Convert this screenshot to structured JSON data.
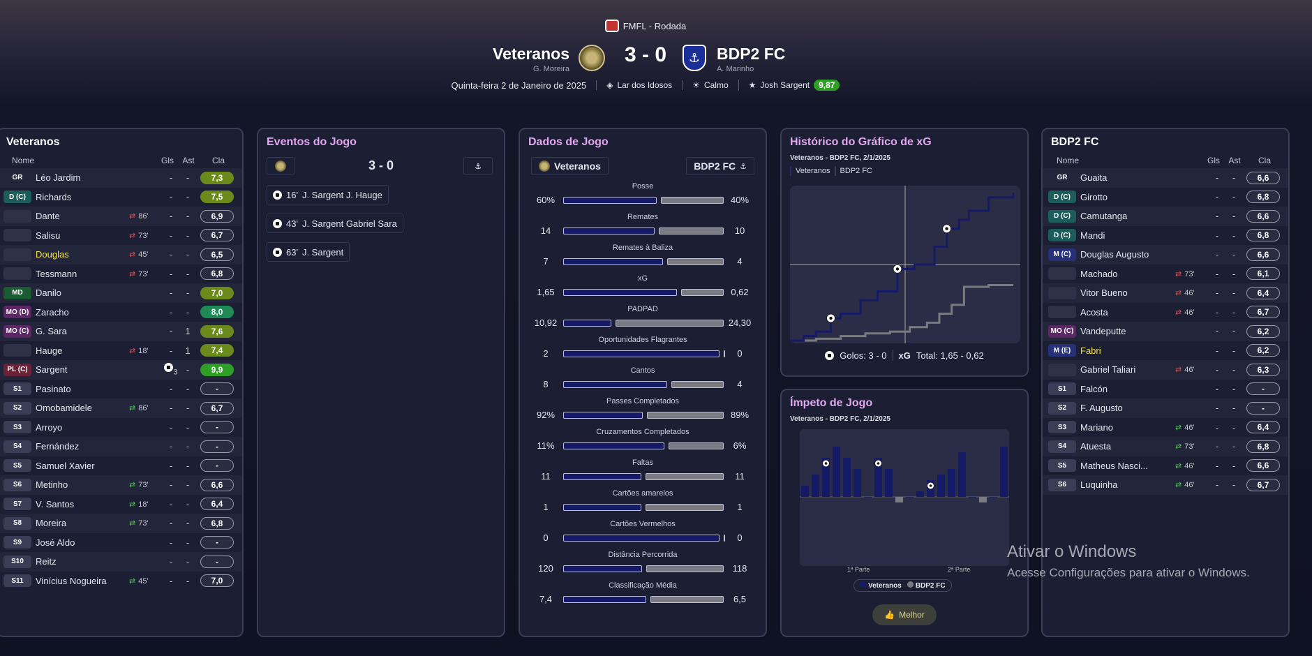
{
  "header": {
    "competition": "FMFL - Rodada",
    "home": {
      "name": "Veteranos",
      "manager": "G. Moreira"
    },
    "away": {
      "name": "BDP2 FC",
      "manager": "A. Marinho"
    },
    "score": "3 - 0",
    "date": "Quinta-feira 2 de Janeiro de 2025",
    "stadium": "Lar dos Idosos",
    "weather": "Calmo",
    "mvp_name": "Josh Sargent",
    "mvp_rating": "9,87"
  },
  "cols": {
    "name": "Nome",
    "gls": "Gls",
    "ast": "Ast",
    "cla": "Cla"
  },
  "home_panel": {
    "title": "Veteranos",
    "players": [
      {
        "pos": "GR",
        "name": "Léo Jardim",
        "sub": "",
        "gls": "-",
        "ast": "-",
        "rating": "7,3",
        "style": "olive"
      },
      {
        "pos": "D (C)",
        "name": "Richards",
        "sub": "",
        "gls": "-",
        "ast": "-",
        "rating": "7,5",
        "style": "olive"
      },
      {
        "pos": "",
        "name": "Dante",
        "sub": "86'",
        "gls": "-",
        "ast": "-",
        "rating": "6,9",
        "style": "none"
      },
      {
        "pos": "",
        "name": "Salisu",
        "sub": "73'",
        "gls": "-",
        "ast": "-",
        "rating": "6,7",
        "style": "none"
      },
      {
        "pos": "",
        "name": "Douglas",
        "sub": "45'",
        "gls": "-",
        "ast": "-",
        "rating": "6,5",
        "style": "none"
      },
      {
        "pos": "",
        "name": "Tessmann",
        "sub": "73'",
        "gls": "-",
        "ast": "-",
        "rating": "6,8",
        "style": "none"
      },
      {
        "pos": "MD",
        "name": "Danilo",
        "sub": "",
        "gls": "-",
        "ast": "-",
        "rating": "7,0",
        "style": "olive"
      },
      {
        "pos": "MO (D)",
        "name": "Zaracho",
        "sub": "",
        "gls": "-",
        "ast": "-",
        "rating": "8,0",
        "style": "teal"
      },
      {
        "pos": "MO (C)",
        "name": "G. Sara",
        "sub": "",
        "gls": "-",
        "ast": "1",
        "rating": "7,6",
        "style": "olive"
      },
      {
        "pos": "",
        "name": "Hauge",
        "sub": "18'",
        "gls": "-",
        "ast": "1",
        "rating": "7,4",
        "style": "olive"
      },
      {
        "pos": "PL (C)",
        "name": "Sargent",
        "sub": "",
        "gls": "3",
        "ast": "-",
        "rating": "9,9",
        "style": "green"
      },
      {
        "pos": "S1",
        "name": "Pasinato",
        "sub": "",
        "gls": "-",
        "ast": "-",
        "rating": "-",
        "style": "none"
      },
      {
        "pos": "S2",
        "name": "Omobamidele",
        "sub": "86'",
        "gls": "-",
        "ast": "-",
        "rating": "6,7",
        "style": "none"
      },
      {
        "pos": "S3",
        "name": "Arroyo",
        "sub": "",
        "gls": "-",
        "ast": "-",
        "rating": "-",
        "style": "none"
      },
      {
        "pos": "S4",
        "name": "Fernández",
        "sub": "",
        "gls": "-",
        "ast": "-",
        "rating": "-",
        "style": "none"
      },
      {
        "pos": "S5",
        "name": "Samuel Xavier",
        "sub": "",
        "gls": "-",
        "ast": "-",
        "rating": "-",
        "style": "none"
      },
      {
        "pos": "S6",
        "name": "Metinho",
        "sub": "73'",
        "gls": "-",
        "ast": "-",
        "rating": "6,6",
        "style": "none"
      },
      {
        "pos": "S7",
        "name": "V. Santos",
        "sub": "18'",
        "gls": "-",
        "ast": "-",
        "rating": "6,4",
        "style": "none"
      },
      {
        "pos": "S8",
        "name": "Moreira",
        "sub": "73'",
        "gls": "-",
        "ast": "-",
        "rating": "6,8",
        "style": "none"
      },
      {
        "pos": "S9",
        "name": "José Aldo",
        "sub": "",
        "gls": "-",
        "ast": "-",
        "rating": "-",
        "style": "none"
      },
      {
        "pos": "S10",
        "name": "Reitz",
        "sub": "",
        "gls": "-",
        "ast": "-",
        "rating": "-",
        "style": "none"
      },
      {
        "pos": "S11",
        "name": "Vinícius Nogueira",
        "sub": "45'",
        "gls": "-",
        "ast": "-",
        "rating": "7,0",
        "style": "none"
      }
    ]
  },
  "away_panel": {
    "title": "BDP2 FC",
    "players": [
      {
        "pos": "GR",
        "name": "Guaita",
        "sub": "",
        "gls": "-",
        "ast": "-",
        "rating": "6,6",
        "style": "none"
      },
      {
        "pos": "D (C)",
        "name": "Girotto",
        "sub": "",
        "gls": "-",
        "ast": "-",
        "rating": "6,8",
        "style": "none"
      },
      {
        "pos": "D (C)",
        "name": "Camutanga",
        "sub": "",
        "gls": "-",
        "ast": "-",
        "rating": "6,6",
        "style": "none"
      },
      {
        "pos": "D (C)",
        "name": "Mandi",
        "sub": "",
        "gls": "-",
        "ast": "-",
        "rating": "6,8",
        "style": "none"
      },
      {
        "pos": "M (C)",
        "name": "Douglas Augusto",
        "sub": "",
        "gls": "-",
        "ast": "-",
        "rating": "6,6",
        "style": "none"
      },
      {
        "pos": "",
        "name": "Machado",
        "sub": "73'",
        "gls": "-",
        "ast": "-",
        "rating": "6,1",
        "style": "none"
      },
      {
        "pos": "",
        "name": "Vitor Bueno",
        "sub": "46'",
        "gls": "-",
        "ast": "-",
        "rating": "6,4",
        "style": "none"
      },
      {
        "pos": "",
        "name": "Acosta",
        "sub": "46'",
        "gls": "-",
        "ast": "-",
        "rating": "6,7",
        "style": "none"
      },
      {
        "pos": "MO (C)",
        "name": "Vandeputte",
        "sub": "",
        "gls": "-",
        "ast": "-",
        "rating": "6,2",
        "style": "none"
      },
      {
        "pos": "M (E)",
        "name": "Fabri",
        "sub": "",
        "gls": "-",
        "ast": "-",
        "rating": "6,2",
        "style": "none"
      },
      {
        "pos": "",
        "name": "Gabriel Taliari",
        "sub": "46'",
        "gls": "-",
        "ast": "-",
        "rating": "6,3",
        "style": "none"
      },
      {
        "pos": "S1",
        "name": "Falcón",
        "sub": "",
        "gls": "-",
        "ast": "-",
        "rating": "-",
        "style": "none"
      },
      {
        "pos": "S2",
        "name": "F. Augusto",
        "sub": "",
        "gls": "-",
        "ast": "-",
        "rating": "-",
        "style": "none"
      },
      {
        "pos": "S3",
        "name": "Mariano",
        "sub": "46'",
        "gls": "-",
        "ast": "-",
        "rating": "6,4",
        "style": "none"
      },
      {
        "pos": "S4",
        "name": "Atuesta",
        "sub": "73'",
        "gls": "-",
        "ast": "-",
        "rating": "6,8",
        "style": "none"
      },
      {
        "pos": "S5",
        "name": "Matheus Nasci...",
        "sub": "46'",
        "gls": "-",
        "ast": "-",
        "rating": "6,6",
        "style": "none"
      },
      {
        "pos": "S6",
        "name": "Luquinha",
        "sub": "46'",
        "gls": "-",
        "ast": "-",
        "rating": "6,7",
        "style": "none"
      }
    ]
  },
  "events": {
    "title": "Eventos do Jogo",
    "score": "3 - 0",
    "items": [
      {
        "minute": "16'",
        "text": "J. Sargent  J. Hauge"
      },
      {
        "minute": "43'",
        "text": "J. Sargent  Gabriel Sara"
      },
      {
        "minute": "63'",
        "text": "J. Sargent"
      }
    ]
  },
  "stats": {
    "title": "Dados de Jogo",
    "home": "Veteranos",
    "away": "BDP2 FC",
    "rows": [
      {
        "label": "Posse",
        "l": "60%",
        "r": "40%",
        "lv": 60,
        "rv": 40
      },
      {
        "label": "Remates",
        "l": "14",
        "r": "10",
        "lv": 14,
        "rv": 10
      },
      {
        "label": "Remates à Baliza",
        "l": "7",
        "r": "4",
        "lv": 7,
        "rv": 4
      },
      {
        "label": "xG",
        "l": "1,65",
        "r": "0,62",
        "lv": 1.65,
        "rv": 0.62
      },
      {
        "label": "PADPAD",
        "l": "10,92",
        "r": "24,30",
        "lv": 10.92,
        "rv": 24.3
      },
      {
        "label": "Oportunidades Flagrantes",
        "l": "2",
        "r": "0",
        "lv": 2,
        "rv": 0
      },
      {
        "label": "Cantos",
        "l": "8",
        "r": "4",
        "lv": 8,
        "rv": 4
      },
      {
        "label": "Passes Completados",
        "l": "92%",
        "r": "89%",
        "lv": 92,
        "rv": 89
      },
      {
        "label": "Cruzamentos Completados",
        "l": "11%",
        "r": "6%",
        "lv": 11,
        "rv": 6
      },
      {
        "label": "Faltas",
        "l": "11",
        "r": "11",
        "lv": 11,
        "rv": 11
      },
      {
        "label": "Cartões amarelos",
        "l": "1",
        "r": "1",
        "lv": 1,
        "rv": 1
      },
      {
        "label": "Cartões Vermelhos",
        "l": "0",
        "r": "0",
        "lv": 0,
        "rv": 0
      },
      {
        "label": "Distância Percorrida",
        "l": "120",
        "r": "118",
        "lv": 120,
        "rv": 118
      },
      {
        "label": "Classificação Média",
        "l": "7,4",
        "r": "6,5",
        "lv": 7.4,
        "rv": 6.5
      }
    ]
  },
  "xg": {
    "title": "Histórico do Gráfico de xG",
    "subtitle": "Veteranos - BDP2 FC, 2/1/2025",
    "legend_home": "Veteranos",
    "legend_away": "BDP2 FC",
    "footer_goals": "Golos: 3 - 0",
    "footer_xg_label": "xG",
    "footer_total": "Total:  1,65  -  0,62"
  },
  "momentum": {
    "title": "Ímpeto de Jogo",
    "subtitle": "Veteranos - BDP2 FC, 2/1/2025",
    "half1": "1ª Parte",
    "half2": "2ª Parte",
    "legend_home": "Veteranos",
    "legend_away": "BDP2 FC",
    "button": "Melhor"
  },
  "watermark": {
    "line1": "Ativar o Windows",
    "line2": "Acesse Configurações para ativar o Windows."
  },
  "colors": {
    "accent": "#e3a8f0",
    "home_bar": "#141a66",
    "away_bar": "#7a7a80",
    "green": "#2e9e26"
  },
  "chart_data": [
    {
      "type": "line",
      "title": "Histórico do Gráfico de xG",
      "series": [
        {
          "name": "Veteranos",
          "x": [
            0,
            5,
            10,
            16,
            20,
            28,
            35,
            43,
            50,
            58,
            63,
            68,
            72,
            80,
            90
          ],
          "values": [
            0,
            0.05,
            0.1,
            0.25,
            0.3,
            0.45,
            0.55,
            0.8,
            0.85,
            1.05,
            1.25,
            1.35,
            1.45,
            1.6,
            1.65
          ]
        },
        {
          "name": "BDP2 FC",
          "x": [
            0,
            10,
            20,
            30,
            40,
            48,
            55,
            60,
            65,
            70,
            80,
            90
          ],
          "values": [
            0,
            0.02,
            0.05,
            0.08,
            0.1,
            0.15,
            0.2,
            0.3,
            0.4,
            0.6,
            0.62,
            0.62
          ]
        }
      ],
      "goals_minutes": [
        16,
        43,
        63
      ],
      "xlim": [
        0,
        90
      ],
      "ylim": [
        0,
        1.7
      ]
    },
    {
      "type": "bar",
      "title": "Ímpeto de Jogo",
      "categories": [
        1,
        2,
        3,
        4,
        5,
        6,
        7,
        8,
        9,
        10,
        11,
        12,
        13,
        14,
        15,
        16,
        17,
        18,
        19,
        20
      ],
      "values": [
        2,
        4,
        7,
        9,
        7,
        5,
        0,
        7,
        5,
        -1,
        0,
        1,
        3,
        4,
        5,
        8,
        0,
        -1,
        0,
        9
      ],
      "goals_minutes_bar": [
        3,
        8,
        13
      ]
    }
  ]
}
